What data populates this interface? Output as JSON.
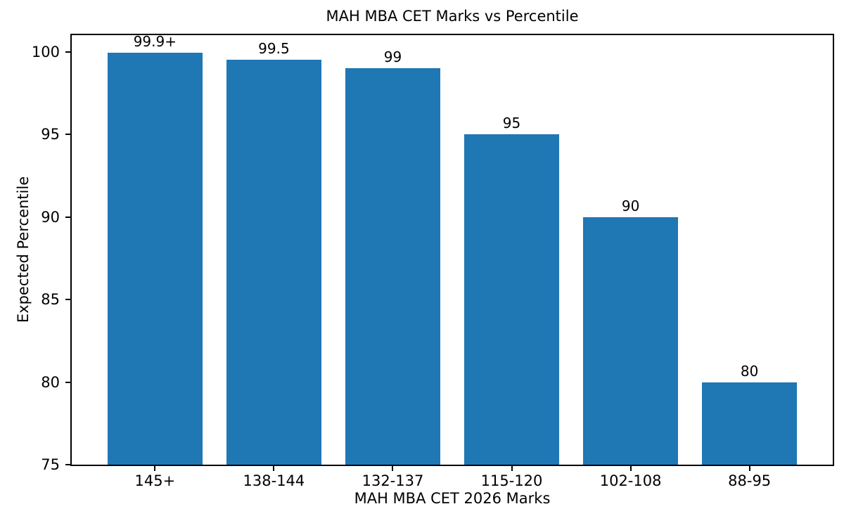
{
  "chart_data": {
    "type": "bar",
    "title": "MAH MBA CET Marks vs Percentile",
    "xlabel": "MAH MBA CET 2026 Marks",
    "ylabel": "Expected Percentile",
    "categories": [
      "145+",
      "138-144",
      "132-137",
      "115-120",
      "102-108",
      "88-95"
    ],
    "values": [
      99.95,
      99.5,
      99,
      95,
      90,
      80
    ],
    "bar_labels": [
      "99.9+",
      "99.5",
      "99",
      "95",
      "90",
      "80"
    ],
    "yticks": [
      75,
      80,
      85,
      90,
      95,
      100
    ],
    "ylim": [
      75,
      101
    ],
    "xlim": [
      -0.7,
      5.7
    ],
    "bar_width_fraction": 0.8,
    "bar_color": "#1f77b4",
    "axis_color": "#000000",
    "text_color": "#000000",
    "background_color": "#ffffff",
    "grid": false,
    "legend": false
  }
}
